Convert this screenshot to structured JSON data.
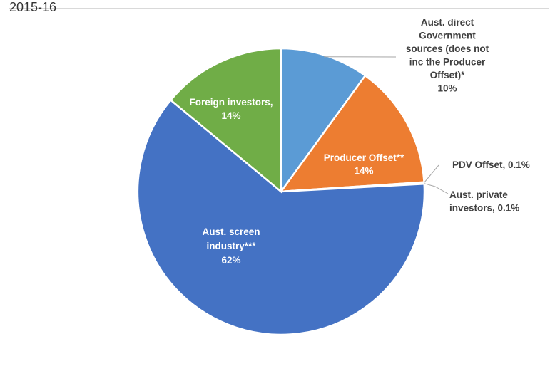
{
  "page": {
    "top_text": "2015-16"
  },
  "colors": {
    "blue_light": "#5b9bd5",
    "orange": "#ed7d31",
    "grey": "#a5a5a5",
    "yellow": "#ffc000",
    "blue_dark": "#4472c4",
    "green": "#70ad47",
    "label_dark": "#404040",
    "label_light": "#ffffff"
  },
  "chart_data": {
    "type": "pie",
    "title": "",
    "slices": [
      {
        "label": "Aust. direct Government sources (does not inc the Producer Offset)*",
        "value": 10,
        "value_label": "10%",
        "color": "#5b9bd5"
      },
      {
        "label": "Producer Offset**",
        "value": 14,
        "value_label": "14%",
        "color": "#ed7d31"
      },
      {
        "label": "PDV Offset",
        "value": 0.1,
        "value_label": "0.1%",
        "color": "#a5a5a5"
      },
      {
        "label": "Aust. private investors",
        "value": 0.1,
        "value_label": "0.1%",
        "color": "#ffc000"
      },
      {
        "label": "Aust. screen industry***",
        "value": 62,
        "value_label": "62%",
        "color": "#4472c4"
      },
      {
        "label": "Foreign investors",
        "value": 14,
        "value_label": "14%",
        "color": "#70ad47"
      }
    ],
    "data_labels": [
      {
        "lines": [
          "Aust. direct",
          "Government",
          "sources (does not",
          "inc the Producer",
          "Offset)*",
          "10%"
        ]
      },
      {
        "lines": [
          "Producer Offset**",
          "14%"
        ]
      },
      {
        "lines": [
          "PDV Offset, 0.1%"
        ]
      },
      {
        "lines": [
          "Aust. private",
          "investors, 0.1%"
        ]
      },
      {
        "lines": [
          "Aust. screen",
          "industry***",
          "62%"
        ]
      },
      {
        "lines": [
          "Foreign investors,",
          "14%"
        ]
      }
    ],
    "legend": "none"
  }
}
